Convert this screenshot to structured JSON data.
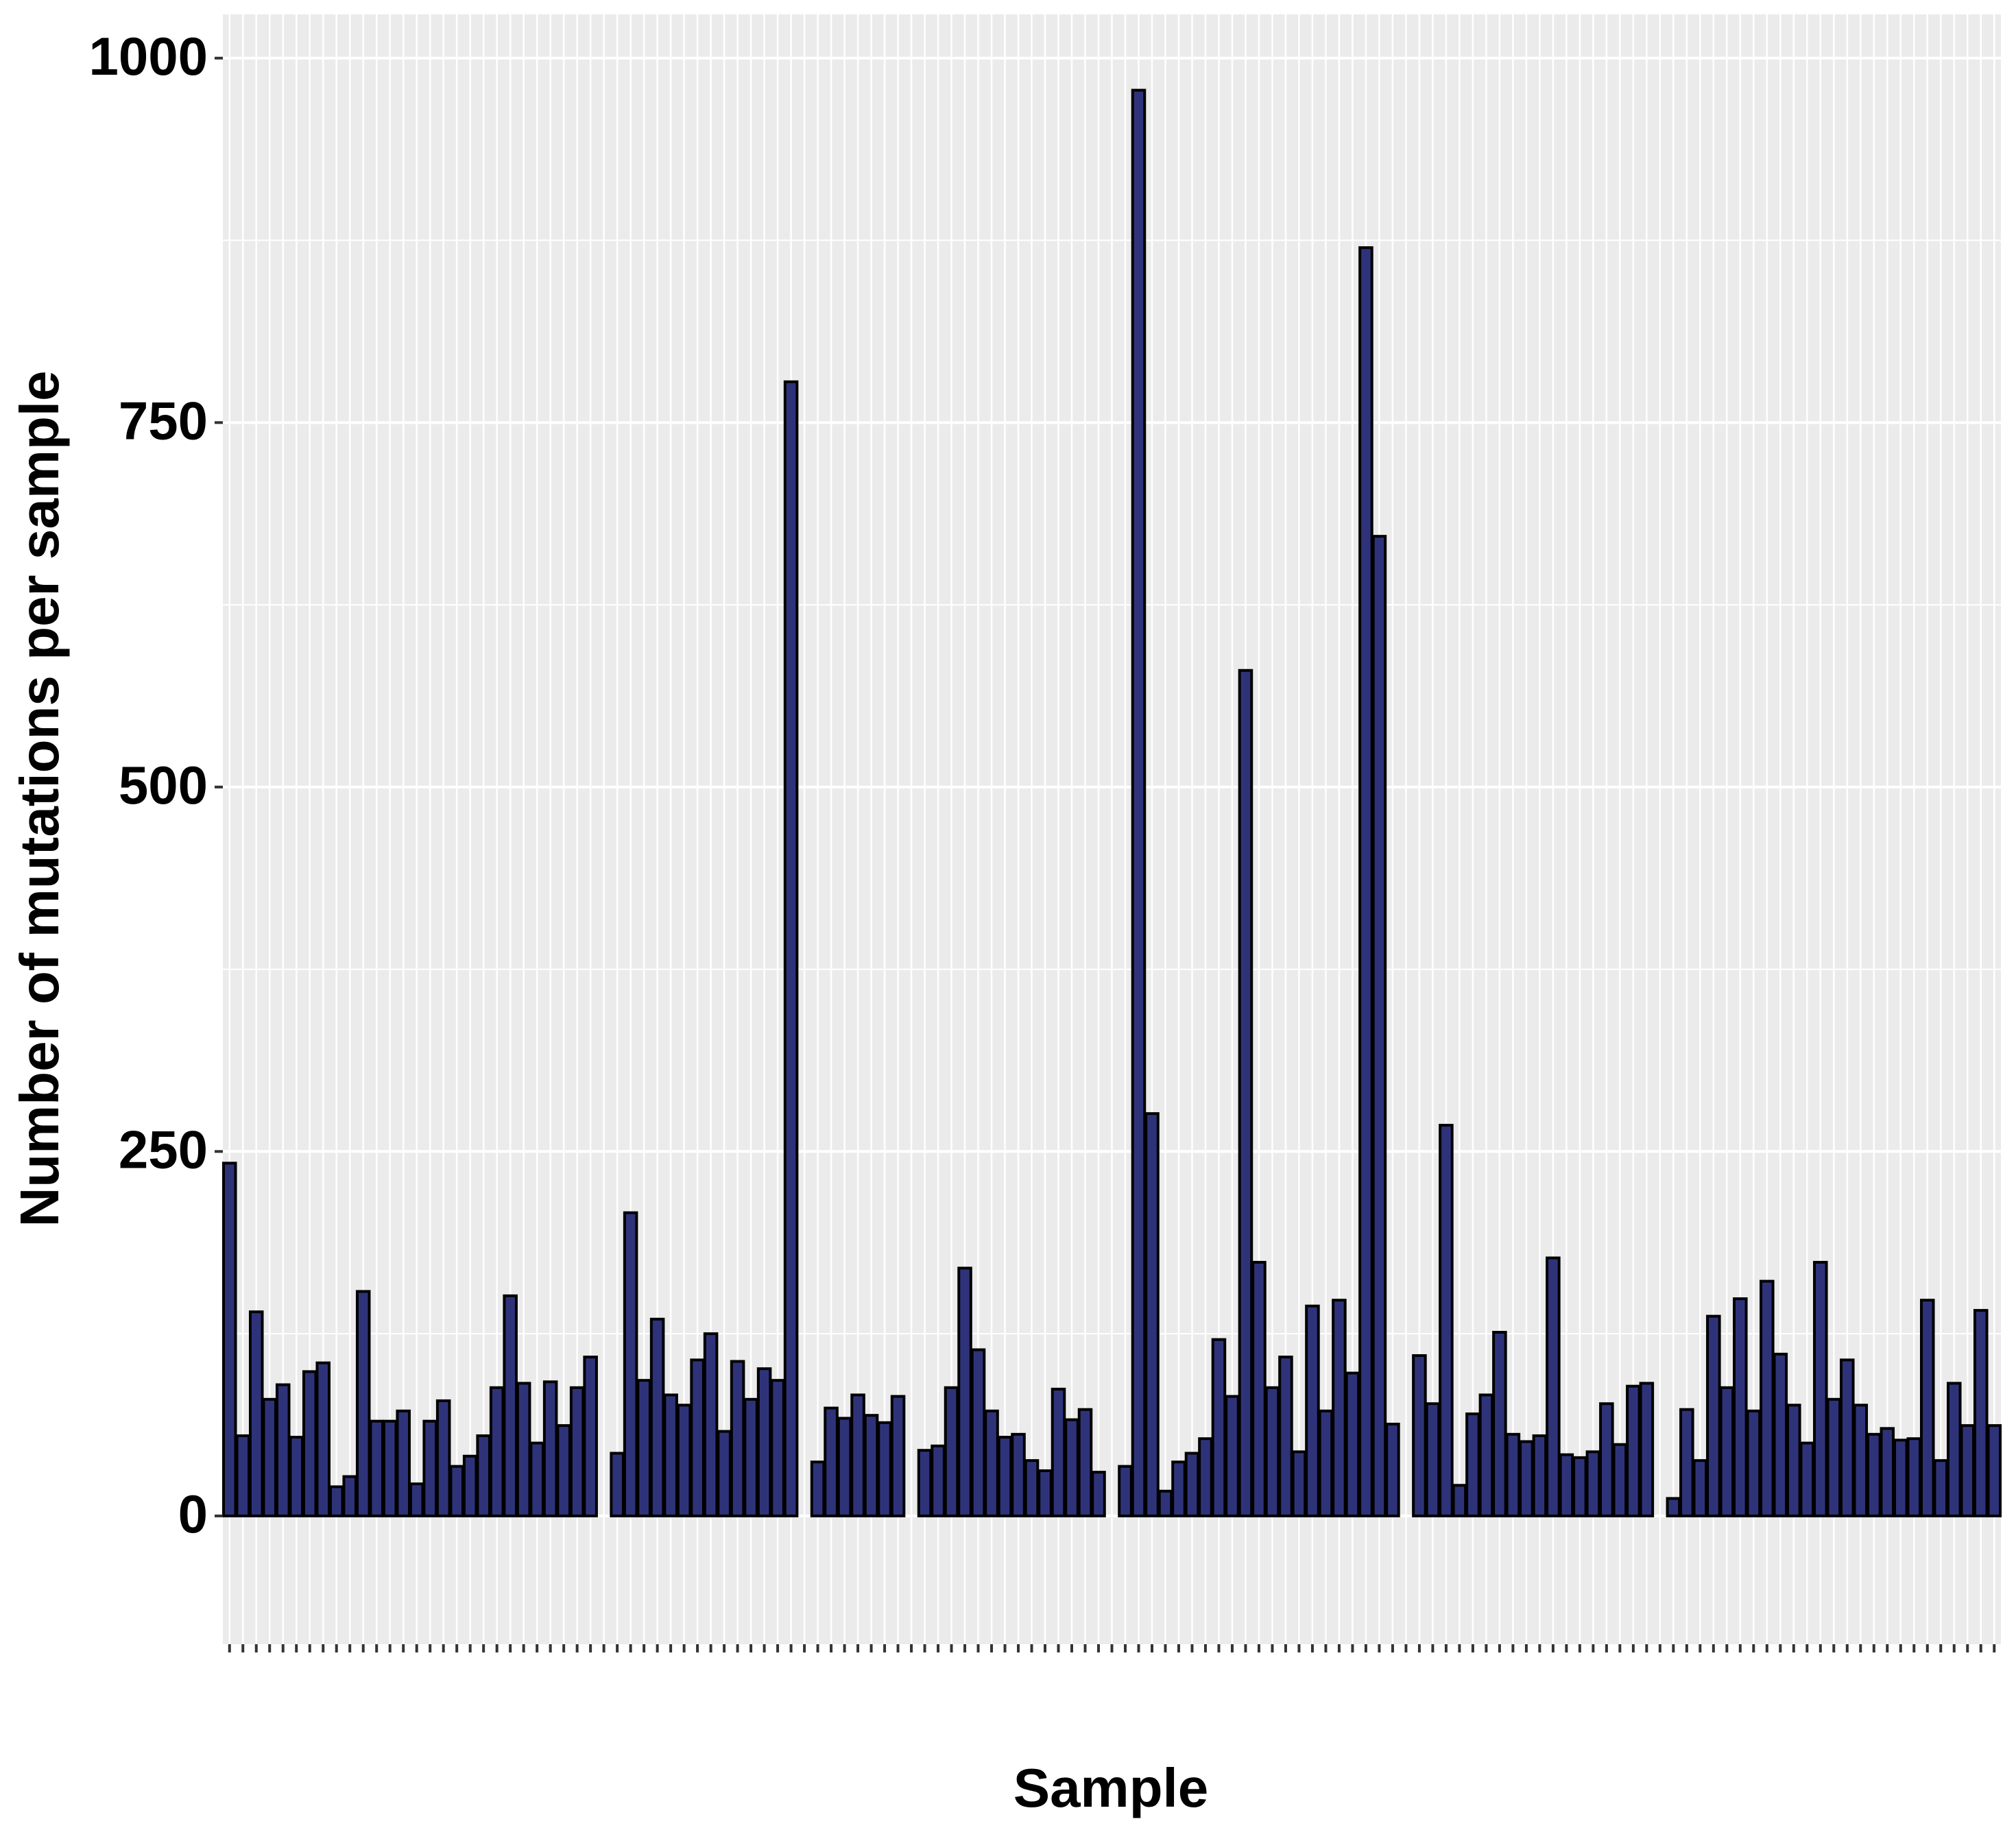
{
  "chart_data": {
    "type": "bar",
    "title": "",
    "xlabel": "Sample",
    "ylabel": "Number of mutations per sample",
    "ylim": [
      -88,
      1030
    ],
    "yticks": [
      0,
      250,
      500,
      750,
      1000
    ],
    "x_tick_labels_shown": false,
    "grid": true,
    "legend": "none",
    "bar_fill": "#2E3379",
    "bar_stroke": "#000000",
    "panel_background": "#EBEBEB",
    "grid_color": "#FFFFFF",
    "values": [
      242,
      55,
      140,
      80,
      90,
      54,
      99,
      105,
      20,
      27,
      154,
      65,
      65,
      72,
      22,
      65,
      79,
      34,
      41,
      55,
      88,
      151,
      91,
      50,
      92,
      62,
      88,
      109,
      0,
      43,
      208,
      93,
      135,
      83,
      76,
      107,
      125,
      58,
      106,
      80,
      101,
      93,
      778,
      0,
      37,
      74,
      67,
      83,
      69,
      64,
      82,
      0,
      45,
      48,
      88,
      170,
      114,
      72,
      54,
      56,
      38,
      31,
      87,
      66,
      73,
      30,
      0,
      34,
      978,
      276,
      17,
      37,
      43,
      53,
      121,
      82,
      580,
      174,
      88,
      109,
      44,
      144,
      72,
      148,
      98,
      870,
      672,
      63,
      0,
      110,
      77,
      268,
      21,
      70,
      83,
      126,
      56,
      51,
      55,
      177,
      42,
      40,
      44,
      77,
      49,
      89,
      91,
      0,
      12,
      73,
      38,
      137,
      88,
      149,
      72,
      161,
      111,
      76,
      50,
      174,
      80,
      107,
      76,
      56,
      60,
      52,
      53,
      148,
      38,
      91,
      62,
      141,
      62
    ]
  }
}
